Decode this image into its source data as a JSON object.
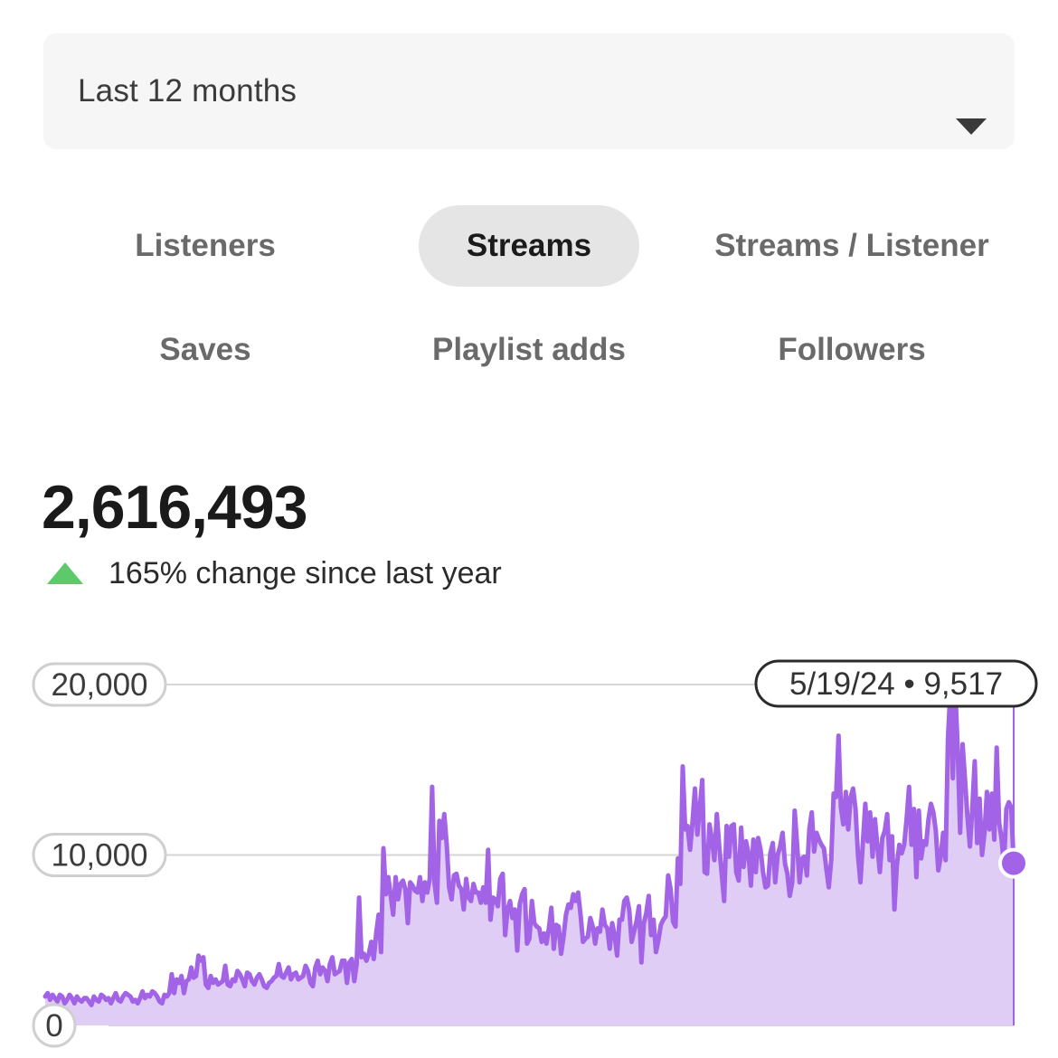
{
  "range_select": {
    "label": "Last 12 months",
    "caret_icon": "caret-down-icon"
  },
  "tabs": [
    {
      "label": "Listeners",
      "active": false
    },
    {
      "label": "Streams",
      "active": true
    },
    {
      "label": "Streams / Listener",
      "active": false
    },
    {
      "label": "Saves",
      "active": false
    },
    {
      "label": "Playlist adds",
      "active": false
    },
    {
      "label": "Followers",
      "active": false
    }
  ],
  "summary": {
    "total": "2,616,493",
    "change_text": "165% change since last year",
    "change_icon": "triangle-up-icon",
    "change_color": "#5ec96a"
  },
  "colors": {
    "series_line": "#a263e6",
    "series_fill": "#e0cdf6",
    "gridline": "#d6d6d6"
  },
  "chart_data": {
    "type": "area",
    "series": [
      {
        "values": [
          1700,
          1900,
          1500,
          1800,
          1600,
          1400,
          1800,
          1700,
          1300,
          1500,
          1800,
          1600,
          1300,
          1700,
          1500,
          1400,
          1600,
          1600,
          1400,
          1200,
          1700,
          1500,
          1400,
          1800,
          1700,
          1500,
          1600,
          1300,
          1600,
          1900,
          1500,
          1400,
          1700,
          1900,
          1800,
          1700,
          1400,
          1500,
          1300,
          1600,
          2000,
          1600,
          1800,
          1700,
          2000,
          1900,
          1700,
          1400,
          1300,
          1800,
          1700,
          1900,
          3000,
          1900,
          2700,
          2500,
          2900,
          1900,
          2600,
          2700,
          3400,
          2800,
          2900,
          4100,
          3800,
          4000,
          2400,
          2200,
          2900,
          2500,
          2700,
          2400,
          2500,
          2600,
          3500,
          2400,
          2300,
          2700,
          2600,
          3200,
          3000,
          2700,
          2300,
          3100,
          3000,
          2600,
          2400,
          2800,
          3000,
          2700,
          2300,
          2200,
          2500,
          2600,
          2800,
          2900,
          3600,
          2900,
          2800,
          3100,
          3400,
          2700,
          3000,
          3100,
          2700,
          2800,
          2900,
          3500,
          3200,
          2500,
          2300,
          3400,
          3800,
          3000,
          3400,
          3200,
          2600,
          3600,
          4000,
          3000,
          3100,
          3200,
          3800,
          3800,
          2500,
          3700,
          3900,
          2600,
          3600,
          7500,
          4000,
          4200,
          3800,
          4200,
          4900,
          3900,
          5400,
          6500,
          4300,
          10400,
          7700,
          8700,
          7600,
          6500,
          8700,
          7400,
          8300,
          8500,
          8000,
          6000,
          8400,
          8200,
          7900,
          7800,
          8700,
          7300,
          8400,
          7800,
          8600,
          14000,
          8300,
          7200,
          12000,
          11000,
          12400,
          10600,
          8100,
          7400,
          8800,
          8900,
          8200,
          8000,
          6800,
          8600,
          7500,
          7300,
          8300,
          7800,
          7800,
          7200,
          8100,
          7200,
          10300,
          6200,
          7500,
          7400,
          7000,
          8600,
          8900,
          5300,
          6800,
          7300,
          6300,
          6800,
          4400,
          7100,
          7700,
          8000,
          4800,
          5100,
          7300,
          6000,
          5800,
          5700,
          4900,
          5400,
          4800,
          5700,
          6900,
          4500,
          5900,
          5800,
          4200,
          5200,
          6500,
          7100,
          6900,
          7700,
          7300,
          7800,
          6500,
          4900,
          5100,
          5200,
          6300,
          5800,
          4800,
          5700,
          5500,
          6800,
          5900,
          5700,
          4500,
          6000,
          5300,
          4100,
          6200,
          6200,
          7300,
          7500,
          6800,
          4900,
          5500,
          6100,
          7000,
          3700,
          6000,
          6600,
          7600,
          5300,
          6200,
          4300,
          5000,
          5900,
          6200,
          6400,
          8800,
          8000,
          6100,
          5800,
          9800,
          8300,
          15200,
          11500,
          11700,
          10300,
          11900,
          13900,
          11200,
          12800,
          14400,
          9000,
          8900,
          11800,
          10900,
          9700,
          12400,
          10500,
          8900,
          7300,
          11700,
          9900,
          11700,
          11800,
          9000,
          8500,
          11600,
          9300,
          10800,
          10100,
          8200,
          10900,
          9000,
          11000,
          10300,
          9000,
          8100,
          8200,
          10100,
          10700,
          8400,
          10000,
          10500,
          11300,
          9500,
          8900,
          7600,
          8400,
          12600,
          10600,
          8400,
          9800,
          9900,
          8800,
          11500,
          12500,
          10200,
          11300,
          10900,
          10600,
          10400,
          9200,
          8100,
          9700,
          13600,
          13400,
          17000,
          12800,
          11800,
          13700,
          11500,
          13400,
          13900,
          12700,
          10000,
          8400,
          10700,
          13000,
          10800,
          12500,
          9900,
          12100,
          10500,
          9000,
          11000,
          11400,
          12400,
          9700,
          11100,
          6800,
          9400,
          10600,
          10100,
          10600,
          12100,
          14000,
          10600,
          12700,
          8700,
          12600,
          9800,
          10800,
          10600,
          12100,
          13000,
          12500,
          11400,
          9100,
          9900,
          11300,
          9700,
          16800,
          19700,
          14500,
          19700,
          16200,
          11300,
          16500,
          14400,
          12200,
          10500,
          12800,
          15500,
          10700,
          13300,
          10000,
          11300,
          13700,
          11500,
          13600,
          10900,
          16300,
          11900,
          11000,
          9400,
          12700,
          13100,
          12800,
          9517
        ],
        "last_point_label": "5/19/24 • 9,517"
      }
    ],
    "yticks": [
      "0",
      "10,000",
      "20,000"
    ],
    "ylim": [
      0,
      20000
    ],
    "grid": true
  }
}
